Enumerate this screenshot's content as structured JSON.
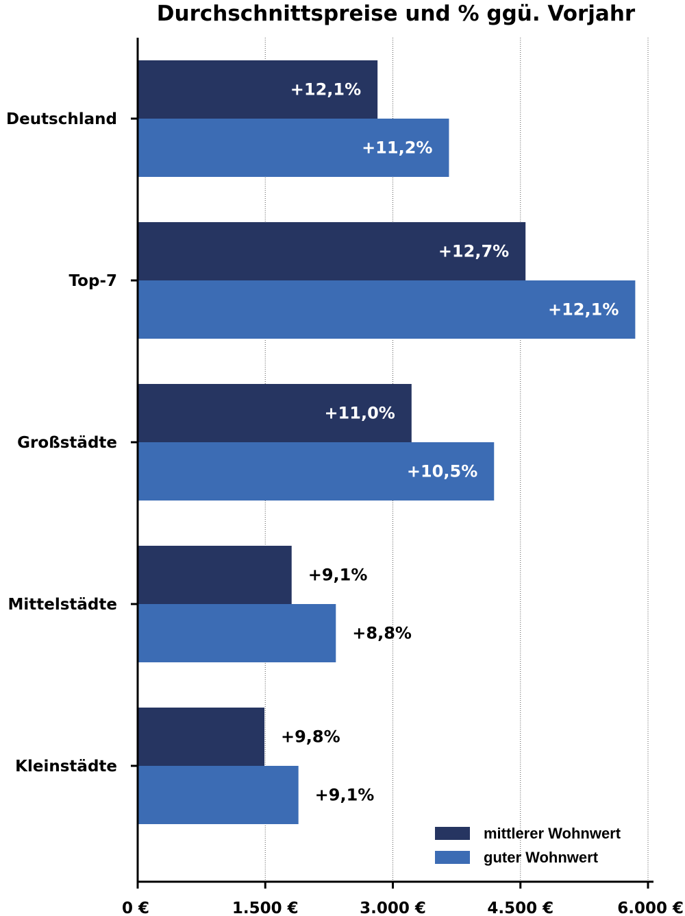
{
  "chart_data": {
    "type": "bar",
    "orientation": "horizontal",
    "title": "Durchschnittspreise und % ggü. Vorjahr",
    "categories": [
      "Deutschland",
      "Top-7",
      "Großstädte",
      "Mittelstädte",
      "Kleinstädte"
    ],
    "series": [
      {
        "name": "mittlerer Wohnwert",
        "color": "#263561",
        "values": [
          2820,
          4560,
          3220,
          1810,
          1490
        ],
        "labels": [
          "+12,1%",
          "+12,7%",
          "+11,0%",
          "+9,1%",
          "+9,8%"
        ]
      },
      {
        "name": "guter Wohnwert",
        "color": "#3c6cb4",
        "values": [
          3660,
          5850,
          4190,
          2330,
          1890
        ],
        "labels": [
          "+11,2%",
          "+12,1%",
          "+10,5%",
          "+8,8%",
          "+9,1%"
        ]
      }
    ],
    "xlim": [
      0,
      6000
    ],
    "xticks": [
      0,
      1500,
      3000,
      4500,
      6000
    ],
    "xtick_labels": [
      "0 €",
      "1.500 €",
      "3.000 €",
      "4.500 €",
      "6.000 €"
    ],
    "grid": "vertical dotted",
    "legend": "bottom-right"
  }
}
